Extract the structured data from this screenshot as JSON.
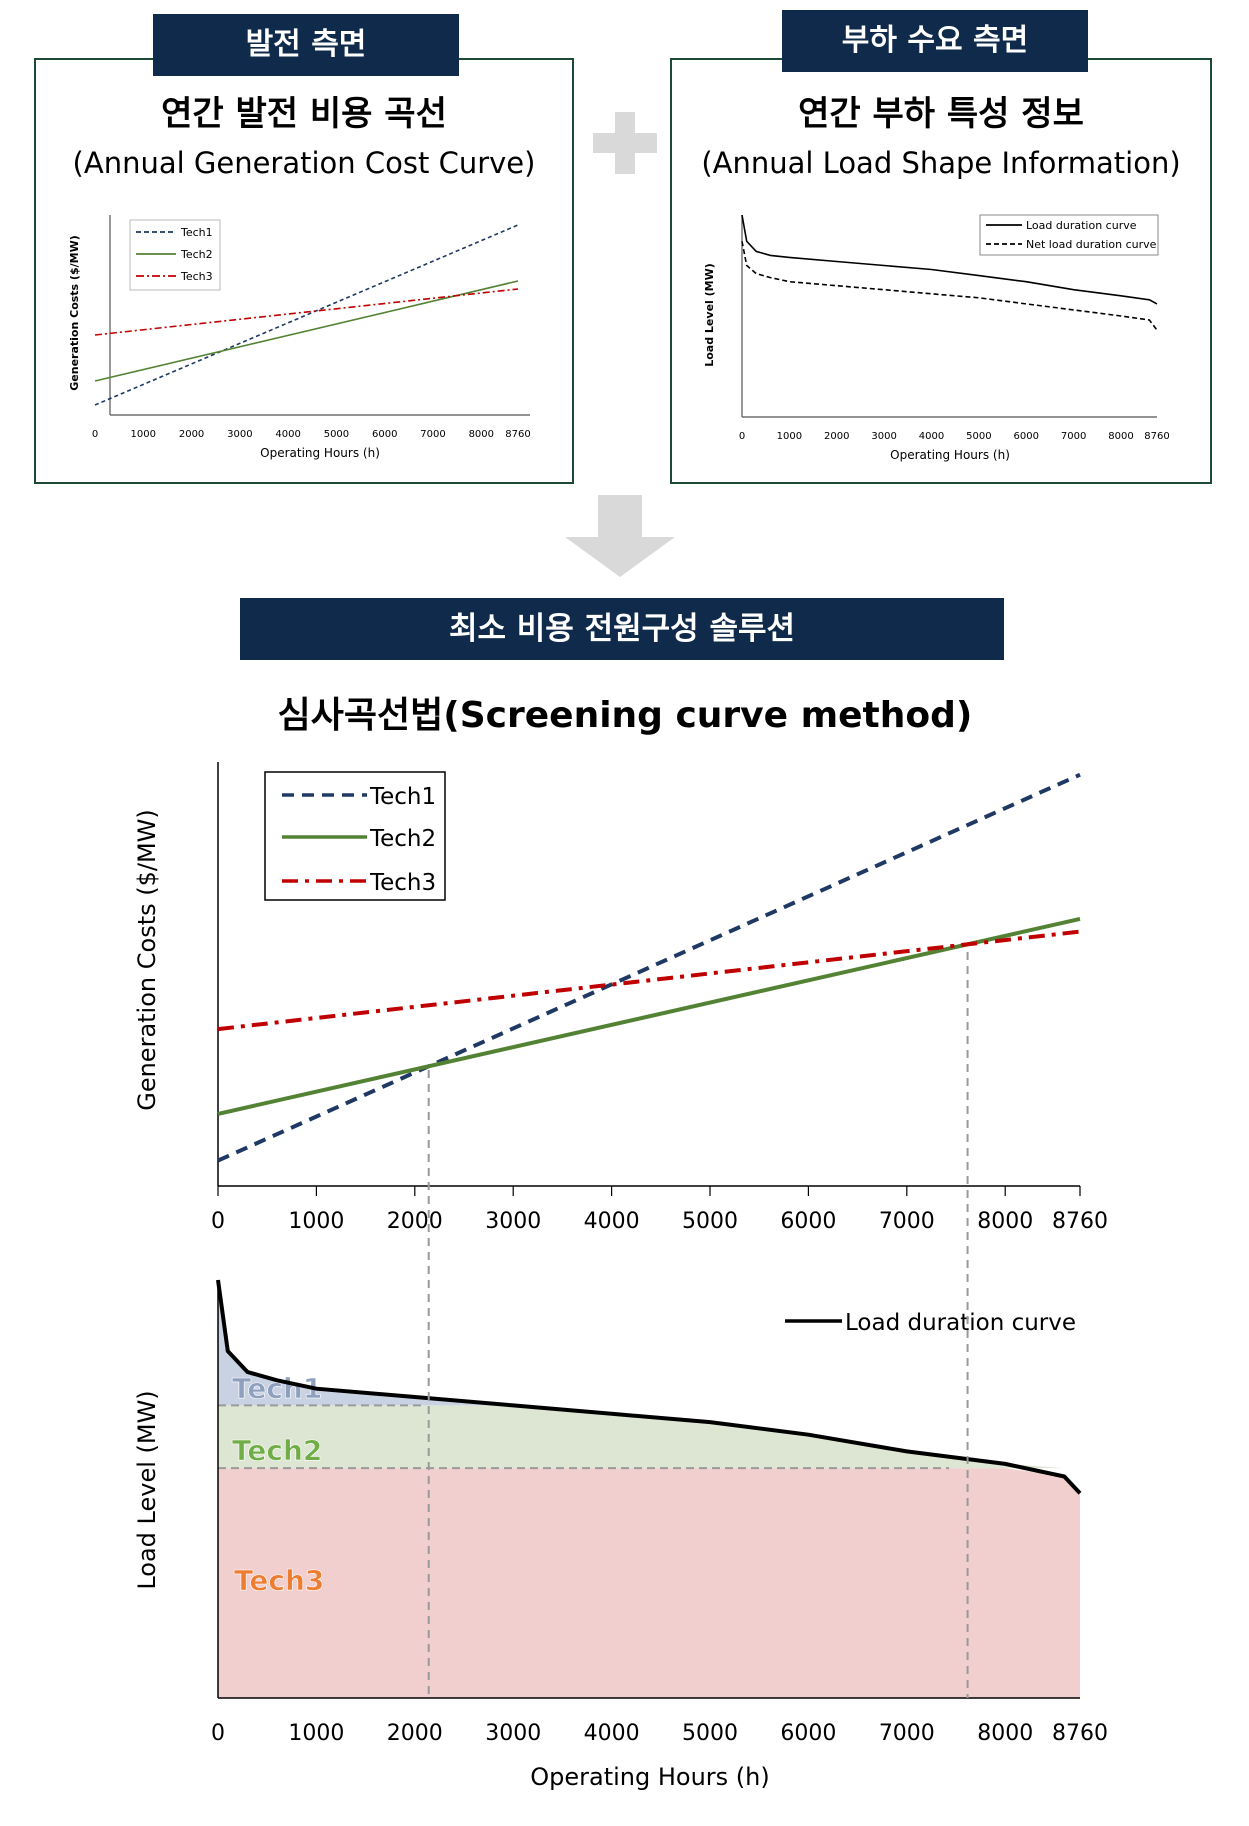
{
  "top_left": {
    "tag": "발전 측면",
    "title_ko": "연간 발전 비용 곡선",
    "title_en": "(Annual Generation Cost Curve)",
    "chart": {
      "ylabel": "Generation Costs ($/MW)",
      "xlabel": "Operating Hours (h)",
      "xticks": [
        "0",
        "1000",
        "2000",
        "3000",
        "4000",
        "5000",
        "6000",
        "7000",
        "8000",
        "8760"
      ],
      "legend": [
        "Tech1",
        "Tech2",
        "Tech3"
      ]
    }
  },
  "top_right": {
    "tag": "부하 수요 측면",
    "title_ko": "연간 부하 특성 정보",
    "title_en": "(Annual Load Shape Information)",
    "chart": {
      "ylabel": "Load Level (MW)",
      "xlabel": "Operating Hours (h)",
      "xticks": [
        "0",
        "1000",
        "2000",
        "3000",
        "4000",
        "5000",
        "6000",
        "7000",
        "8000",
        "8760"
      ],
      "legend": [
        "Load duration curve",
        "Net load duration curve"
      ]
    }
  },
  "solution_banner": "최소 비용 전원구성 솔루션",
  "method_title": "심사곡선법(Screening curve method)",
  "main_cost_chart": {
    "ylabel": "Generation Costs ($/MW)",
    "xticks": [
      "0",
      "1000",
      "2000",
      "3000",
      "4000",
      "5000",
      "6000",
      "7000",
      "8000",
      "8760"
    ],
    "legend": [
      "Tech1",
      "Tech2",
      "Tech3"
    ]
  },
  "main_load_chart": {
    "ylabel": "Load Level (MW)",
    "xlabel": "Operating Hours (h)",
    "xticks": [
      "0",
      "1000",
      "2000",
      "3000",
      "4000",
      "5000",
      "6000",
      "7000",
      "8000",
      "8760"
    ],
    "legend": [
      "Load duration curve"
    ],
    "regions": [
      "Tech1",
      "Tech2",
      "Tech3"
    ]
  },
  "colors": {
    "navy": "#0f2a4a",
    "tech1": "#1f3864",
    "tech2": "#548235",
    "tech3": "#c00000",
    "arrow": "#d9d9d9",
    "panel_border": "#1d4a35"
  },
  "chart_data": [
    {
      "type": "line",
      "xlim": [
        0,
        8760
      ],
      "x": [
        0,
        8760
      ],
      "series": [
        {
          "name": "Tech1",
          "values": [
            5,
            95
          ]
        },
        {
          "name": "Tech2",
          "values": [
            17,
            67
          ]
        },
        {
          "name": "Tech3",
          "values": [
            40,
            63
          ]
        }
      ]
    },
    {
      "type": "line",
      "xlim": [
        0,
        8760
      ],
      "x": [
        0,
        100,
        300,
        600,
        1000,
        2000,
        3000,
        4000,
        5000,
        6000,
        7000,
        8000,
        8600,
        8760
      ],
      "series": [
        {
          "name": "Load duration curve",
          "values": [
            100,
            87,
            82,
            80,
            79,
            77,
            75,
            73,
            70,
            67,
            63,
            60,
            58,
            56
          ]
        },
        {
          "name": "Net load duration curve",
          "values": [
            87,
            75,
            71,
            69,
            67,
            65,
            63,
            61,
            59,
            56,
            53,
            50,
            48,
            43
          ]
        }
      ]
    },
    {
      "type": "line",
      "xlim": [
        0,
        8760
      ],
      "x": [
        0,
        8760
      ],
      "series": [
        {
          "name": "Tech1",
          "values": [
            6,
            97
          ]
        },
        {
          "name": "Tech2",
          "values": [
            17,
            63
          ]
        },
        {
          "name": "Tech3",
          "values": [
            37,
            60
          ]
        }
      ]
    },
    {
      "type": "area",
      "xlim": [
        0,
        8760
      ],
      "x": [
        0,
        100,
        300,
        600,
        1000,
        2000,
        3000,
        4000,
        5000,
        6000,
        7000,
        8000,
        8600,
        8760
      ],
      "series": [
        {
          "name": "Load duration curve",
          "values": [
            100,
            83,
            78,
            76,
            74,
            72,
            70,
            68,
            66,
            63,
            59,
            56,
            53,
            49
          ]
        }
      ]
    }
  ]
}
